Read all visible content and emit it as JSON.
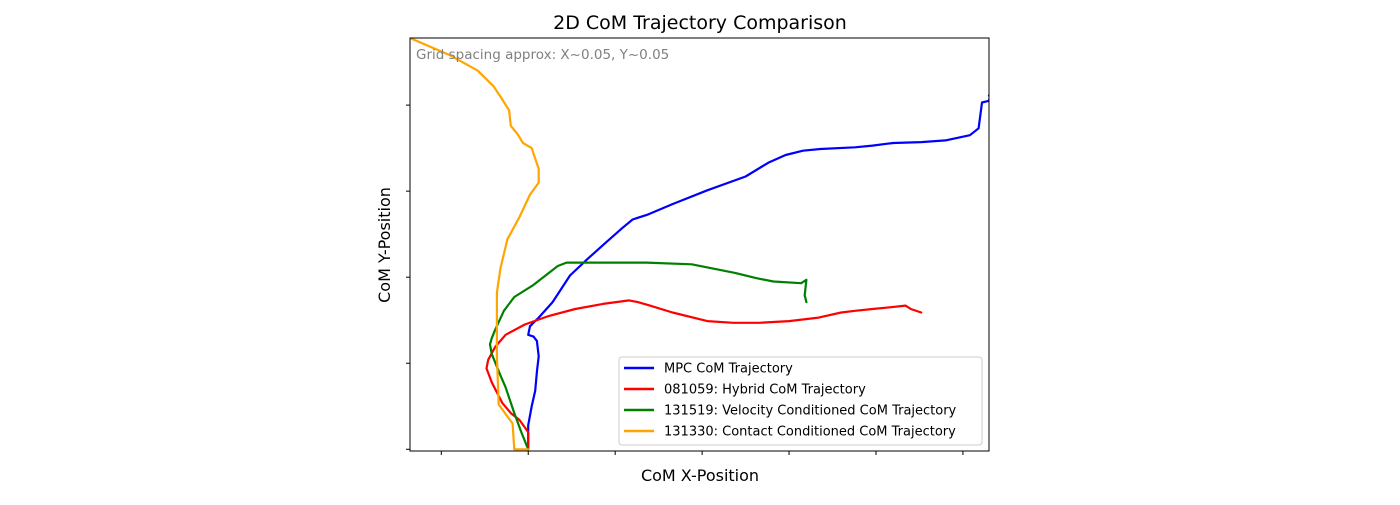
{
  "chart_data": {
    "type": "line",
    "title": "2D CoM Trajectory Comparison",
    "xlabel": "CoM X-Position",
    "ylabel": "CoM Y-Position",
    "annotation": "Grid spacing approx: X~0.05, Y~0.05",
    "xlim": [
      -0.068,
      0.265
    ],
    "ylim": [
      -0.001,
      0.239
    ],
    "x_ticks": [
      -0.05,
      0.0,
      0.05,
      0.1,
      0.15,
      0.2,
      0.25
    ],
    "y_ticks": [
      0.0,
      0.05,
      0.1,
      0.15,
      0.2
    ],
    "tick_labels_shown": false,
    "grid": false,
    "legend_position": "lower-right",
    "series": [
      {
        "name": "MPC CoM Trajectory",
        "color": "#0000ff",
        "x": [
          0.0,
          0.0,
          0.002,
          0.004,
          0.005,
          0.006,
          0.005,
          0.003,
          0.0,
          0.001,
          0.006,
          0.014,
          0.024,
          0.034,
          0.044,
          0.054,
          0.06,
          0.069,
          0.083,
          0.103,
          0.125,
          0.138,
          0.148,
          0.158,
          0.168,
          0.188,
          0.198,
          0.206,
          0.21,
          0.226,
          0.24,
          0.254,
          0.259,
          0.261,
          0.265,
          0.266,
          0.265
        ],
        "y": [
          0.0,
          0.014,
          0.025,
          0.034,
          0.045,
          0.054,
          0.063,
          0.0655,
          0.0665,
          0.0715,
          0.0765,
          0.0855,
          0.101,
          0.1105,
          0.1195,
          0.1285,
          0.1335,
          0.1365,
          0.1425,
          0.1505,
          0.1585,
          0.1665,
          0.171,
          0.1735,
          0.1745,
          0.1755,
          0.1765,
          0.1775,
          0.178,
          0.1785,
          0.1795,
          0.1825,
          0.1865,
          0.2015,
          0.2025,
          0.2075,
          0.2055
        ]
      },
      {
        "name": "081059: Hybrid CoM Trajectory",
        "color": "#ff0000",
        "x": [
          0.0,
          0.0,
          -0.005,
          -0.01,
          -0.015,
          -0.021,
          -0.024,
          -0.023,
          -0.019,
          -0.013,
          -0.002,
          0.012,
          0.027,
          0.043,
          0.058,
          0.063,
          0.07,
          0.083,
          0.103,
          0.118,
          0.133,
          0.15,
          0.167,
          0.18,
          0.188,
          0.198,
          0.208,
          0.217,
          0.22,
          0.226
        ],
        "y": [
          0.0,
          0.01,
          0.017,
          0.021,
          0.027,
          0.039,
          0.047,
          0.052,
          0.0595,
          0.0665,
          0.0725,
          0.0775,
          0.0815,
          0.0845,
          0.0865,
          0.0855,
          0.0835,
          0.0795,
          0.0745,
          0.0735,
          0.0735,
          0.0745,
          0.0765,
          0.0795,
          0.0805,
          0.0815,
          0.0825,
          0.0835,
          0.0815,
          0.0795
        ]
      },
      {
        "name": "131519: Velocity Conditioned CoM Trajectory",
        "color": "#008000",
        "x": [
          0.0,
          -0.004,
          -0.008,
          -0.013,
          -0.016,
          -0.021,
          -0.022,
          -0.021,
          -0.019,
          -0.014,
          -0.008,
          0.003,
          0.017,
          0.022,
          0.042,
          0.068,
          0.094,
          0.119,
          0.131,
          0.141,
          0.157,
          0.16,
          0.159,
          0.16
        ],
        "y": [
          0.0,
          0.01,
          0.021,
          0.036,
          0.043,
          0.0555,
          0.061,
          0.0645,
          0.0695,
          0.0805,
          0.0885,
          0.0955,
          0.1065,
          0.1085,
          0.1085,
          0.1085,
          0.1075,
          0.1025,
          0.0995,
          0.0975,
          0.0965,
          0.0985,
          0.0895,
          0.0855
        ]
      },
      {
        "name": "131330: Contact Conditioned CoM Trajectory",
        "color": "#ffa500",
        "x": [
          0.0,
          -0.004,
          -0.008,
          -0.009,
          -0.017,
          -0.018,
          -0.018,
          -0.016,
          -0.012,
          -0.005,
          0.001,
          0.006,
          0.006,
          0.002,
          -0.003,
          -0.006,
          -0.01,
          -0.011,
          -0.016,
          -0.02,
          -0.029,
          -0.045,
          -0.068
        ],
        "y": [
          0.0,
          0.0,
          0.0,
          0.015,
          0.026,
          0.054,
          0.091,
          0.105,
          0.122,
          0.135,
          0.148,
          0.155,
          0.163,
          0.175,
          0.178,
          0.183,
          0.188,
          0.197,
          0.205,
          0.211,
          0.22,
          0.229,
          0.239
        ]
      }
    ]
  }
}
